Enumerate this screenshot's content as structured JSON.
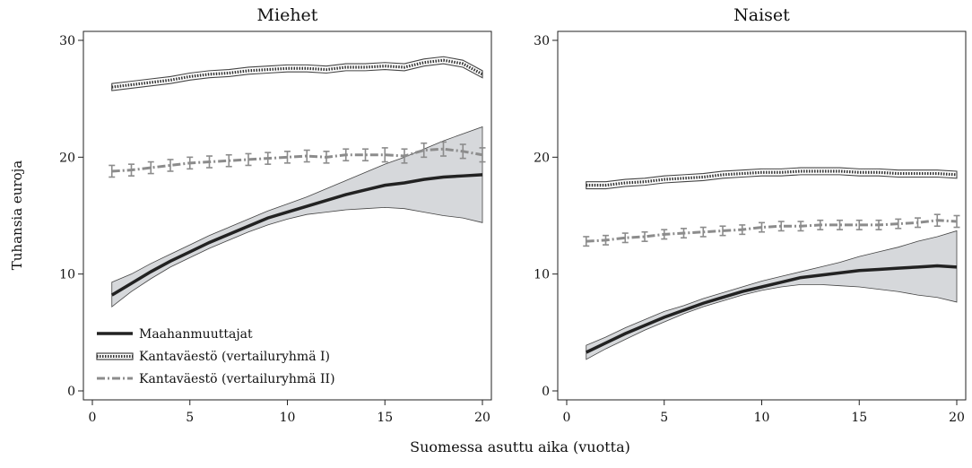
{
  "figure": {
    "ylabel": "Tuhansia euroja",
    "xlabel": "Suomessa asuttu aika (vuotta)"
  },
  "legend": {
    "placement": "bottom-left of first panel",
    "items": [
      {
        "label": "Maahanmuuttajat",
        "style": "solid",
        "color": "#222222"
      },
      {
        "label": "Kantaväestö (vertailuryhmä I)",
        "style": "dotted-band",
        "color": "#333333"
      },
      {
        "label": "Kantaväestö (vertailuryhmä II)",
        "style": "dash-dot-errorbars",
        "color": "#8c8c8c"
      }
    ]
  },
  "colors": {
    "immigrants_line": "#222222",
    "immigrants_band": "#d6d8db",
    "group1_line": "#333333",
    "group2_line": "#8c8c8c"
  },
  "chart_data": [
    {
      "type": "line",
      "title": "Miehet",
      "xlim": [
        0,
        20
      ],
      "ylim": [
        0,
        30
      ],
      "xticks": [
        0,
        5,
        10,
        15,
        20
      ],
      "yticks": [
        0,
        10,
        20,
        30
      ],
      "grid": false,
      "x": [
        1,
        2,
        3,
        4,
        5,
        6,
        7,
        8,
        9,
        10,
        11,
        12,
        13,
        14,
        15,
        16,
        17,
        18,
        19,
        20
      ],
      "series": [
        {
          "name": "Maahanmuuttajat",
          "values": [
            8.2,
            9.2,
            10.2,
            11.1,
            11.9,
            12.7,
            13.4,
            14.1,
            14.8,
            15.3,
            15.8,
            16.3,
            16.8,
            17.2,
            17.6,
            17.8,
            18.1,
            18.3,
            18.4,
            18.5
          ],
          "lower": [
            7.2,
            8.5,
            9.6,
            10.6,
            11.4,
            12.2,
            12.9,
            13.6,
            14.2,
            14.7,
            15.1,
            15.3,
            15.5,
            15.6,
            15.7,
            15.6,
            15.3,
            15.0,
            14.8,
            14.4
          ],
          "upper": [
            9.3,
            10.0,
            10.9,
            11.7,
            12.5,
            13.3,
            14.0,
            14.7,
            15.4,
            16.0,
            16.6,
            17.3,
            18.0,
            18.7,
            19.4,
            20.0,
            20.7,
            21.4,
            22.0,
            22.6
          ]
        },
        {
          "name": "Kantaväestö (vertailuryhmä I)",
          "values": [
            26.0,
            26.2,
            26.4,
            26.6,
            26.9,
            27.1,
            27.2,
            27.4,
            27.5,
            27.6,
            27.6,
            27.5,
            27.7,
            27.7,
            27.8,
            27.7,
            28.1,
            28.3,
            28.0,
            27.1
          ],
          "lower": [
            25.7,
            25.9,
            26.1,
            26.3,
            26.6,
            26.8,
            26.9,
            27.1,
            27.2,
            27.3,
            27.3,
            27.2,
            27.4,
            27.4,
            27.5,
            27.4,
            27.8,
            28.0,
            27.7,
            26.8
          ],
          "upper": [
            26.3,
            26.5,
            26.7,
            26.9,
            27.2,
            27.4,
            27.5,
            27.7,
            27.8,
            27.9,
            27.9,
            27.8,
            28.0,
            28.0,
            28.1,
            28.0,
            28.4,
            28.6,
            28.3,
            27.4
          ]
        },
        {
          "name": "Kantaväestö (vertailuryhmä II)",
          "values": [
            18.8,
            18.9,
            19.1,
            19.3,
            19.5,
            19.6,
            19.7,
            19.8,
            19.9,
            20.0,
            20.1,
            20.0,
            20.2,
            20.2,
            20.2,
            20.1,
            20.6,
            20.7,
            20.5,
            20.2
          ],
          "lower": [
            18.3,
            18.4,
            18.6,
            18.8,
            19.0,
            19.1,
            19.2,
            19.3,
            19.4,
            19.5,
            19.6,
            19.5,
            19.7,
            19.7,
            19.6,
            19.5,
            20.0,
            20.1,
            19.9,
            19.6
          ],
          "upper": [
            19.3,
            19.4,
            19.6,
            19.8,
            20.0,
            20.1,
            20.2,
            20.3,
            20.4,
            20.5,
            20.6,
            20.5,
            20.7,
            20.7,
            20.8,
            20.7,
            21.2,
            21.3,
            21.1,
            20.8
          ]
        }
      ]
    },
    {
      "type": "line",
      "title": "Naiset",
      "xlim": [
        0,
        20
      ],
      "ylim": [
        0,
        30
      ],
      "xticks": [
        0,
        5,
        10,
        15,
        20
      ],
      "yticks": [
        0,
        10,
        20,
        30
      ],
      "grid": false,
      "x": [
        1,
        2,
        3,
        4,
        5,
        6,
        7,
        8,
        9,
        10,
        11,
        12,
        13,
        14,
        15,
        16,
        17,
        18,
        19,
        20
      ],
      "series": [
        {
          "name": "Maahanmuuttajat",
          "values": [
            3.3,
            4.1,
            4.9,
            5.6,
            6.3,
            6.9,
            7.5,
            8.0,
            8.5,
            8.9,
            9.3,
            9.7,
            9.9,
            10.1,
            10.3,
            10.4,
            10.5,
            10.6,
            10.7,
            10.6
          ],
          "lower": [
            2.7,
            3.6,
            4.4,
            5.2,
            5.9,
            6.6,
            7.2,
            7.7,
            8.2,
            8.6,
            8.9,
            9.1,
            9.1,
            9.0,
            8.9,
            8.7,
            8.5,
            8.2,
            8.0,
            7.6
          ],
          "upper": [
            3.9,
            4.6,
            5.4,
            6.1,
            6.8,
            7.3,
            7.9,
            8.4,
            8.9,
            9.4,
            9.8,
            10.2,
            10.6,
            11.0,
            11.5,
            11.9,
            12.3,
            12.8,
            13.2,
            13.7
          ]
        },
        {
          "name": "Kantaväestö (vertailuryhmä I)",
          "values": [
            17.6,
            17.6,
            17.8,
            17.9,
            18.1,
            18.2,
            18.3,
            18.5,
            18.6,
            18.7,
            18.7,
            18.8,
            18.8,
            18.8,
            18.7,
            18.7,
            18.6,
            18.6,
            18.6,
            18.5
          ],
          "lower": [
            17.3,
            17.3,
            17.5,
            17.6,
            17.8,
            17.9,
            18.0,
            18.2,
            18.3,
            18.4,
            18.4,
            18.5,
            18.5,
            18.5,
            18.4,
            18.4,
            18.3,
            18.3,
            18.3,
            18.2
          ],
          "upper": [
            17.9,
            17.9,
            18.1,
            18.2,
            18.4,
            18.5,
            18.6,
            18.8,
            18.9,
            19.0,
            19.0,
            19.1,
            19.1,
            19.1,
            19.0,
            19.0,
            18.9,
            18.9,
            18.9,
            18.8
          ]
        },
        {
          "name": "Kantaväestö (vertailuryhmä II)",
          "values": [
            12.8,
            12.9,
            13.1,
            13.2,
            13.4,
            13.5,
            13.6,
            13.7,
            13.8,
            14.0,
            14.1,
            14.1,
            14.2,
            14.2,
            14.2,
            14.2,
            14.3,
            14.4,
            14.6,
            14.5
          ],
          "lower": [
            12.4,
            12.5,
            12.7,
            12.8,
            13.0,
            13.1,
            13.2,
            13.3,
            13.4,
            13.6,
            13.7,
            13.7,
            13.8,
            13.8,
            13.8,
            13.8,
            13.9,
            14.0,
            14.1,
            14.0
          ],
          "upper": [
            13.2,
            13.3,
            13.5,
            13.6,
            13.8,
            13.9,
            14.0,
            14.1,
            14.2,
            14.4,
            14.5,
            14.5,
            14.6,
            14.6,
            14.6,
            14.6,
            14.7,
            14.8,
            15.1,
            15.0
          ]
        }
      ]
    }
  ]
}
